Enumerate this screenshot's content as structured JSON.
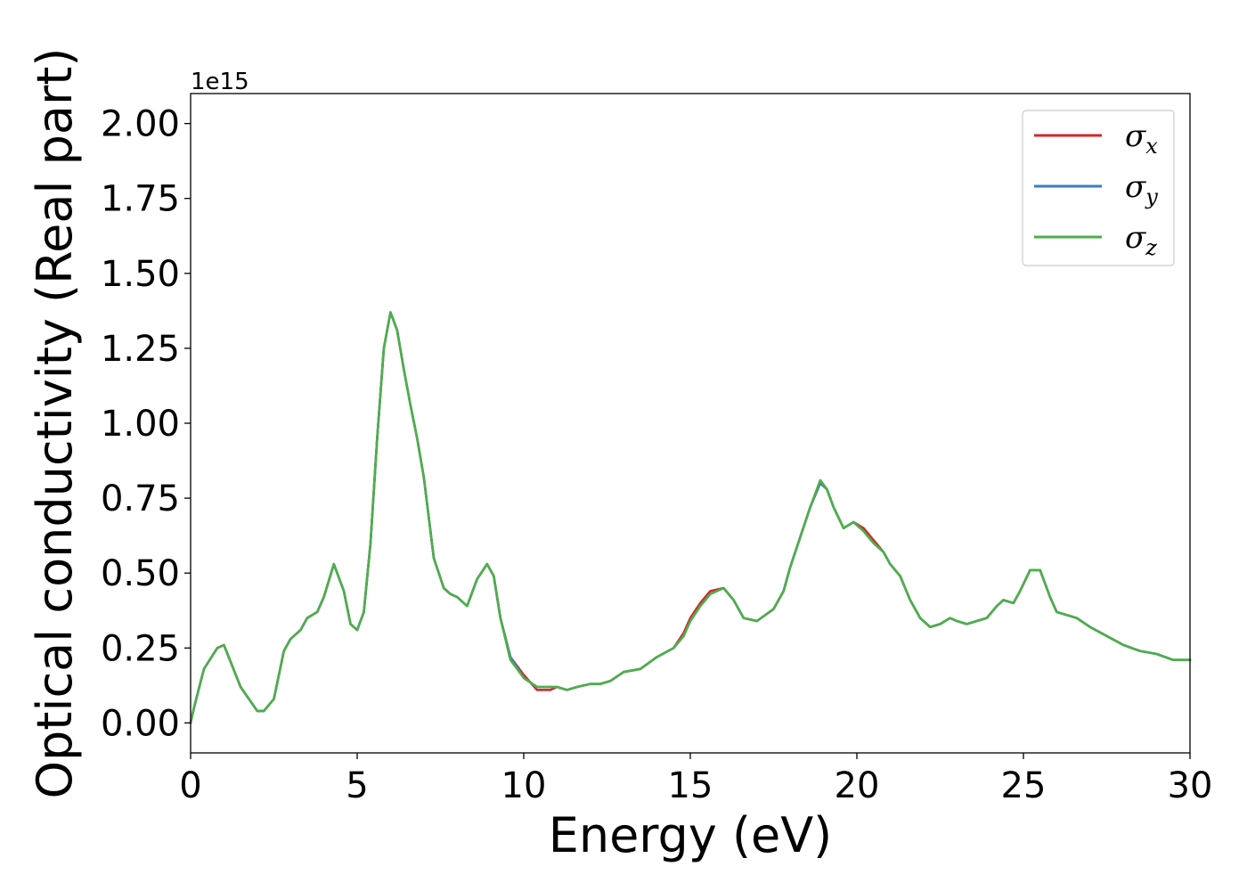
{
  "chart_data": {
    "type": "line",
    "xlabel": "Energy (eV)",
    "ylabel": "Optical conductivity (Real part)",
    "y_offset_text": "1e15",
    "xlim": [
      0,
      30
    ],
    "ylim": [
      -0.1,
      2.1
    ],
    "x_ticks": [
      0,
      5,
      10,
      15,
      20,
      25,
      30
    ],
    "x_tick_labels": [
      "0",
      "5",
      "10",
      "15",
      "20",
      "25",
      "30"
    ],
    "y_ticks": [
      0,
      0.25,
      0.5,
      0.75,
      1.0,
      1.25,
      1.5,
      1.75,
      2.0
    ],
    "y_tick_labels": [
      "0.00",
      "0.25",
      "0.50",
      "0.75",
      "1.00",
      "1.25",
      "1.50",
      "1.75",
      "2.00"
    ],
    "grid": false,
    "legend_position": "top-right",
    "colors": {
      "sigma_x": "#d62728",
      "sigma_y": "#3a7dbf",
      "sigma_z": "#4daf4a"
    },
    "series": [
      {
        "key": "sigma_x",
        "name": "σx",
        "symbol": "σ",
        "subscript": "x",
        "x": [
          0.0,
          0.1,
          0.4,
          0.8,
          1.0,
          1.5,
          2.0,
          2.2,
          2.5,
          2.8,
          3.0,
          3.3,
          3.5,
          3.8,
          4.0,
          4.3,
          4.6,
          4.8,
          5.0,
          5.2,
          5.4,
          5.6,
          5.8,
          6.0,
          6.2,
          6.4,
          6.6,
          6.8,
          7.0,
          7.3,
          7.6,
          7.8,
          8.0,
          8.3,
          8.6,
          8.9,
          9.1,
          9.3,
          9.6,
          10.0,
          10.4,
          10.8,
          11.0,
          11.3,
          11.6,
          12.0,
          12.3,
          12.6,
          13.0,
          13.5,
          14.0,
          14.5,
          14.8,
          15.0,
          15.3,
          15.6,
          16.0,
          16.3,
          16.6,
          17.0,
          17.5,
          17.8,
          18.0,
          18.3,
          18.6,
          18.9,
          19.1,
          19.3,
          19.6,
          19.9,
          20.2,
          20.5,
          20.8,
          21.0,
          21.3,
          21.6,
          21.9,
          22.2,
          22.5,
          22.8,
          23.0,
          23.3,
          23.6,
          23.9,
          24.2,
          24.4,
          24.7,
          24.9,
          25.2,
          25.5,
          25.8,
          26.0,
          26.3,
          26.6,
          27.0,
          27.5,
          28.0,
          28.5,
          29.0,
          29.5,
          30.0
        ],
        "y": [
          0.0,
          0.05,
          0.18,
          0.25,
          0.26,
          0.12,
          0.04,
          0.04,
          0.08,
          0.24,
          0.28,
          0.31,
          0.35,
          0.37,
          0.42,
          0.53,
          0.44,
          0.33,
          0.31,
          0.37,
          0.6,
          0.95,
          1.25,
          1.37,
          1.31,
          1.18,
          1.06,
          0.95,
          0.82,
          0.55,
          0.45,
          0.43,
          0.42,
          0.39,
          0.48,
          0.53,
          0.49,
          0.35,
          0.22,
          0.16,
          0.11,
          0.11,
          0.12,
          0.11,
          0.12,
          0.13,
          0.13,
          0.14,
          0.17,
          0.18,
          0.22,
          0.25,
          0.3,
          0.35,
          0.4,
          0.44,
          0.45,
          0.41,
          0.35,
          0.34,
          0.38,
          0.44,
          0.52,
          0.62,
          0.72,
          0.8,
          0.78,
          0.72,
          0.65,
          0.67,
          0.65,
          0.61,
          0.57,
          0.53,
          0.49,
          0.41,
          0.35,
          0.32,
          0.33,
          0.35,
          0.34,
          0.33,
          0.34,
          0.35,
          0.39,
          0.41,
          0.4,
          0.44,
          0.51,
          0.51,
          0.42,
          0.37,
          0.36,
          0.35,
          0.32,
          0.29,
          0.26,
          0.24,
          0.23,
          0.21,
          0.21
        ]
      },
      {
        "key": "sigma_y",
        "name": "σy",
        "symbol": "σ",
        "subscript": "y",
        "x": [
          0.0,
          0.1,
          0.4,
          0.8,
          1.0,
          1.5,
          2.0,
          2.2,
          2.5,
          2.8,
          3.0,
          3.3,
          3.5,
          3.8,
          4.0,
          4.3,
          4.6,
          4.8,
          5.0,
          5.2,
          5.4,
          5.6,
          5.8,
          6.0,
          6.2,
          6.4,
          6.6,
          6.8,
          7.0,
          7.3,
          7.6,
          7.8,
          8.0,
          8.3,
          8.6,
          8.9,
          9.1,
          9.3,
          9.6,
          10.0,
          10.4,
          10.8,
          11.0,
          11.3,
          11.6,
          12.0,
          12.3,
          12.6,
          13.0,
          13.5,
          14.0,
          14.5,
          14.8,
          15.0,
          15.3,
          15.6,
          16.0,
          16.3,
          16.6,
          17.0,
          17.5,
          17.8,
          18.0,
          18.3,
          18.6,
          18.9,
          19.1,
          19.3,
          19.6,
          19.9,
          20.2,
          20.5,
          20.8,
          21.0,
          21.3,
          21.6,
          21.9,
          22.2,
          22.5,
          22.8,
          23.0,
          23.3,
          23.6,
          23.9,
          24.2,
          24.4,
          24.7,
          24.9,
          25.2,
          25.5,
          25.8,
          26.0,
          26.3,
          26.6,
          27.0,
          27.5,
          28.0,
          28.5,
          29.0,
          29.5,
          30.0
        ],
        "y": [
          0.0,
          0.05,
          0.18,
          0.25,
          0.26,
          0.12,
          0.04,
          0.04,
          0.08,
          0.24,
          0.28,
          0.31,
          0.35,
          0.37,
          0.42,
          0.53,
          0.44,
          0.33,
          0.31,
          0.37,
          0.6,
          0.95,
          1.25,
          1.37,
          1.31,
          1.18,
          1.06,
          0.95,
          0.82,
          0.55,
          0.45,
          0.43,
          0.42,
          0.39,
          0.48,
          0.53,
          0.49,
          0.35,
          0.22,
          0.15,
          0.12,
          0.12,
          0.12,
          0.11,
          0.12,
          0.13,
          0.13,
          0.14,
          0.17,
          0.18,
          0.22,
          0.25,
          0.29,
          0.34,
          0.39,
          0.43,
          0.45,
          0.41,
          0.35,
          0.34,
          0.38,
          0.44,
          0.52,
          0.62,
          0.72,
          0.8,
          0.78,
          0.72,
          0.65,
          0.67,
          0.64,
          0.6,
          0.57,
          0.53,
          0.49,
          0.41,
          0.35,
          0.32,
          0.33,
          0.35,
          0.34,
          0.33,
          0.34,
          0.35,
          0.39,
          0.41,
          0.4,
          0.44,
          0.51,
          0.51,
          0.42,
          0.37,
          0.36,
          0.35,
          0.32,
          0.29,
          0.26,
          0.24,
          0.23,
          0.21,
          0.21
        ]
      },
      {
        "key": "sigma_z",
        "name": "σz",
        "symbol": "σ",
        "subscript": "z",
        "x": [
          0.0,
          0.1,
          0.4,
          0.8,
          1.0,
          1.5,
          2.0,
          2.2,
          2.5,
          2.8,
          3.0,
          3.3,
          3.5,
          3.8,
          4.0,
          4.3,
          4.6,
          4.8,
          5.0,
          5.2,
          5.4,
          5.6,
          5.8,
          6.0,
          6.2,
          6.4,
          6.6,
          6.8,
          7.0,
          7.3,
          7.6,
          7.8,
          8.0,
          8.3,
          8.6,
          8.9,
          9.1,
          9.3,
          9.6,
          10.0,
          10.4,
          10.8,
          11.0,
          11.3,
          11.6,
          12.0,
          12.3,
          12.6,
          13.0,
          13.5,
          14.0,
          14.5,
          14.8,
          15.0,
          15.3,
          15.6,
          16.0,
          16.3,
          16.6,
          17.0,
          17.5,
          17.8,
          18.0,
          18.3,
          18.6,
          18.9,
          19.1,
          19.3,
          19.6,
          19.9,
          20.2,
          20.5,
          20.8,
          21.0,
          21.3,
          21.6,
          21.9,
          22.2,
          22.5,
          22.8,
          23.0,
          23.3,
          23.6,
          23.9,
          24.2,
          24.4,
          24.7,
          24.9,
          25.2,
          25.5,
          25.8,
          26.0,
          26.3,
          26.6,
          27.0,
          27.5,
          28.0,
          28.5,
          29.0,
          29.5,
          30.0
        ],
        "y": [
          0.0,
          0.05,
          0.18,
          0.25,
          0.26,
          0.12,
          0.04,
          0.04,
          0.08,
          0.24,
          0.28,
          0.31,
          0.35,
          0.37,
          0.42,
          0.53,
          0.44,
          0.33,
          0.31,
          0.37,
          0.6,
          0.95,
          1.25,
          1.37,
          1.31,
          1.18,
          1.06,
          0.95,
          0.82,
          0.55,
          0.45,
          0.43,
          0.42,
          0.39,
          0.48,
          0.53,
          0.49,
          0.35,
          0.21,
          0.15,
          0.12,
          0.12,
          0.12,
          0.11,
          0.12,
          0.13,
          0.13,
          0.14,
          0.17,
          0.18,
          0.22,
          0.25,
          0.29,
          0.34,
          0.39,
          0.43,
          0.45,
          0.41,
          0.35,
          0.34,
          0.38,
          0.44,
          0.52,
          0.62,
          0.72,
          0.81,
          0.78,
          0.72,
          0.65,
          0.67,
          0.64,
          0.6,
          0.57,
          0.53,
          0.49,
          0.41,
          0.35,
          0.32,
          0.33,
          0.35,
          0.34,
          0.33,
          0.34,
          0.35,
          0.39,
          0.41,
          0.4,
          0.44,
          0.51,
          0.51,
          0.42,
          0.37,
          0.36,
          0.35,
          0.32,
          0.29,
          0.26,
          0.24,
          0.23,
          0.21,
          0.21
        ]
      }
    ]
  }
}
